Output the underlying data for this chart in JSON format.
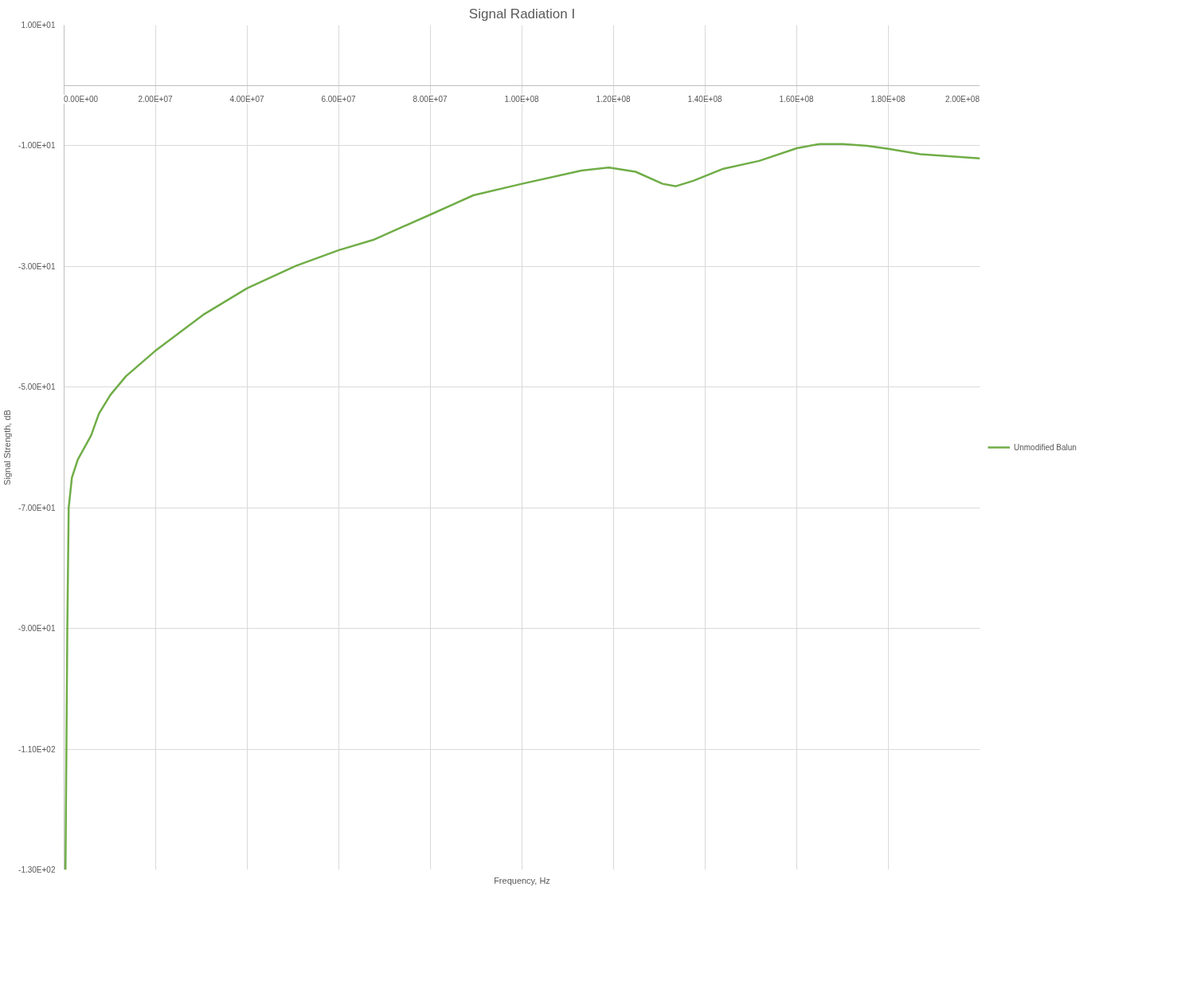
{
  "chart_data": {
    "type": "line",
    "title": "Signal Radiation I",
    "xlabel": "Frequency, Hz",
    "ylabel": "Signal Strength, dB",
    "xlim": [
      0,
      200000000
    ],
    "ylim": [
      -130,
      10
    ],
    "xticks": [
      {
        "value": 0,
        "label": "0.00E+00"
      },
      {
        "value": 20000000,
        "label": "2.00E+07"
      },
      {
        "value": 40000000,
        "label": "4.00E+07"
      },
      {
        "value": 60000000,
        "label": "6.00E+07"
      },
      {
        "value": 80000000,
        "label": "8.00E+07"
      },
      {
        "value": 100000000,
        "label": "1.00E+08"
      },
      {
        "value": 120000000,
        "label": "1.20E+08"
      },
      {
        "value": 140000000,
        "label": "1.40E+08"
      },
      {
        "value": 160000000,
        "label": "1.60E+08"
      },
      {
        "value": 180000000,
        "label": "1.80E+08"
      },
      {
        "value": 200000000,
        "label": "2.00E+08"
      }
    ],
    "yticks": [
      {
        "value": 10,
        "label": "1.00E+01"
      },
      {
        "value": -10,
        "label": "-1.00E+01"
      },
      {
        "value": -30,
        "label": "-3.00E+01"
      },
      {
        "value": -50,
        "label": "-5.00E+01"
      },
      {
        "value": -70,
        "label": "-7.00E+01"
      },
      {
        "value": -90,
        "label": "-9.00E+01"
      },
      {
        "value": -110,
        "label": "-1.10E+02"
      },
      {
        "value": -130,
        "label": "-1.30E+02"
      }
    ],
    "grid": true,
    "legend": "right",
    "marker": "none",
    "line_style": "solid",
    "x": [
      300000,
      700000,
      1000000,
      1700000,
      3000000,
      5900000,
      7600000,
      10100000,
      13500000,
      19900000,
      30400000,
      40000000,
      50600000,
      60000000,
      67500000,
      80000000,
      89400000,
      100000000,
      113000000,
      119000000,
      124800000,
      130700000,
      133600000,
      137400000,
      144000000,
      151800000,
      160000000,
      165000000,
      170000000,
      175400000,
      180000000,
      187000000,
      200000000
    ],
    "series": [
      {
        "name": "Unmodified Balun",
        "color": "#70ad47",
        "values": [
          -130,
          -90.2,
          -70,
          -65,
          -62,
          -58,
          -54.4,
          -51.3,
          -48.2,
          -44,
          -38,
          -33.6,
          -29.9,
          -27.3,
          -25.6,
          -21.4,
          -18.2,
          -16.3,
          -14.1,
          -13.6,
          -14.3,
          -16.3,
          -16.7,
          -15.8,
          -13.8,
          -12.5,
          -10.4,
          -9.7,
          -9.7,
          -10,
          -10.5,
          -11.4,
          -12.1
        ]
      }
    ]
  }
}
